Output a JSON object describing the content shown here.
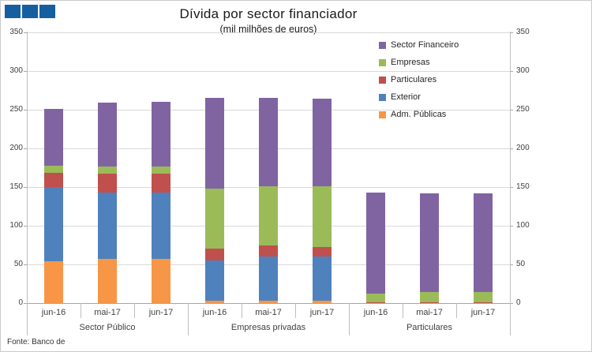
{
  "logo": {
    "color": "#155FA0",
    "squares": 3
  },
  "header": {
    "title": "Dívida por sector financiador",
    "subtitle": "(mil milhões de euros)"
  },
  "source": "Fonte: Banco de",
  "chart_data": {
    "type": "bar",
    "stacked": true,
    "title": "Dívida por sector financiador",
    "subtitle": "(mil milhões de euros)",
    "ylabel": "",
    "xlabel": "",
    "ylim": [
      0,
      350
    ],
    "yticks": [
      0,
      50,
      100,
      150,
      200,
      250,
      300,
      350
    ],
    "grid": true,
    "dual_y_axis": true,
    "legend_position": "top-right",
    "groups": [
      "Sector Público",
      "Empresas privadas",
      "Particulares"
    ],
    "categories": [
      "jun-16",
      "mai-17",
      "jun-17",
      "jun-16",
      "mai-17",
      "jun-17",
      "jun-16",
      "mai-17",
      "jun-17"
    ],
    "series": [
      {
        "name": "Adm. Públicas",
        "color": "#F79646",
        "values": [
          54,
          57,
          57,
          3,
          3,
          3,
          0,
          0,
          0
        ]
      },
      {
        "name": "Exterior",
        "color": "#4F81BD",
        "values": [
          96,
          86,
          86,
          52,
          57,
          57,
          0,
          0,
          0
        ]
      },
      {
        "name": "Particulares",
        "color": "#C0504D",
        "values": [
          18,
          24,
          24,
          15,
          14,
          12,
          1,
          1,
          1
        ]
      },
      {
        "name": "Empresas",
        "color": "#9BBB59",
        "values": [
          10,
          10,
          10,
          78,
          77,
          79,
          11,
          13,
          13
        ]
      },
      {
        "name": "Sector Financeiro",
        "color": "#8064A2",
        "values": [
          73,
          82,
          83,
          117,
          114,
          113,
          131,
          128,
          128
        ]
      }
    ],
    "legend_order": [
      "Sector Financeiro",
      "Empresas",
      "Particulares",
      "Exterior",
      "Adm. Públicas"
    ]
  }
}
